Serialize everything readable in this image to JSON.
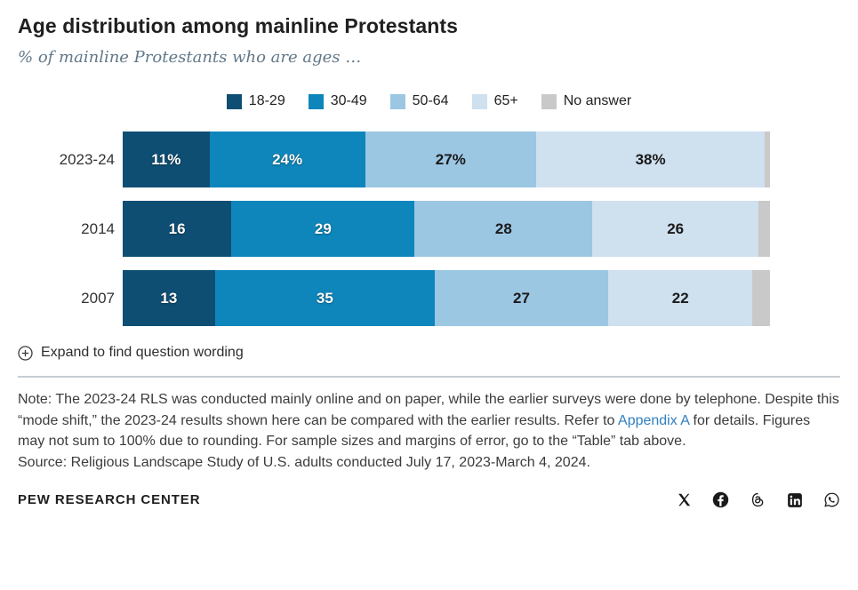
{
  "header": {
    "title": "Age distribution among mainline Protestants",
    "subtitle": "% of mainline Protestants who are ages …"
  },
  "colors": {
    "age_18_29": "#0f4e73",
    "age_30_49": "#0e86bb",
    "age_50_64": "#9cc7e3",
    "age_65_plus": "#cfe0ef",
    "no_answer": "#c9c9c9",
    "subtitle_text": "#627888",
    "link": "#2f7fc1"
  },
  "legend": [
    {
      "label": "18-29",
      "color": "#0f4e73"
    },
    {
      "label": "30-49",
      "color": "#0e86bb"
    },
    {
      "label": "50-64",
      "color": "#9cc7e3"
    },
    {
      "label": "65+",
      "color": "#cfe0ef"
    },
    {
      "label": "No answer",
      "color": "#c9c9c9"
    }
  ],
  "chart_data": {
    "type": "bar",
    "orientation": "horizontal-stacked",
    "title": "Age distribution among mainline Protestants",
    "categories": [
      "2023-24",
      "2014",
      "2007"
    ],
    "series": [
      {
        "name": "18-29",
        "color": "#0f4e73",
        "values": [
          11,
          16,
          13
        ],
        "labels": [
          "11%",
          "16",
          "13"
        ],
        "label_style": "light"
      },
      {
        "name": "30-49",
        "color": "#0e86bb",
        "values": [
          24,
          29,
          35
        ],
        "labels": [
          "24%",
          "29",
          "35"
        ],
        "label_style": "light"
      },
      {
        "name": "50-64",
        "color": "#9cc7e3",
        "values": [
          27,
          28,
          27
        ],
        "labels": [
          "27%",
          "28",
          "27"
        ],
        "label_style": "dark"
      },
      {
        "name": "65+",
        "color": "#cfe0ef",
        "values": [
          38,
          26,
          22
        ],
        "labels": [
          "38%",
          "26",
          "22"
        ],
        "label_style": "dark"
      },
      {
        "name": "No answer",
        "color": "#c9c9c9",
        "values": [
          1,
          2,
          3
        ],
        "labels": [
          "",
          "",
          ""
        ],
        "label_style": "dark"
      }
    ],
    "value_unit": "percent",
    "legend_position": "top-center",
    "grid": false
  },
  "expand": {
    "label": "Expand to find question wording"
  },
  "notes": {
    "note_before": "Note: The 2023-24 RLS was conducted mainly online and on paper, while the earlier surveys were done by telephone. Despite this “mode shift,” the 2023-24 results shown here can be compared with the earlier results. Refer to ",
    "link": "Appendix A",
    "note_after": " for details. Figures may not sum to 100% due to rounding. For sample sizes and margins of error, go to the “Table” tab above.",
    "source": "Source: Religious Landscape Study of U.S. adults conducted July 17, 2023-March 4, 2024."
  },
  "footer": {
    "brand": "PEW RESEARCH CENTER",
    "social": [
      "x",
      "facebook",
      "threads",
      "linkedin",
      "whatsapp"
    ]
  }
}
